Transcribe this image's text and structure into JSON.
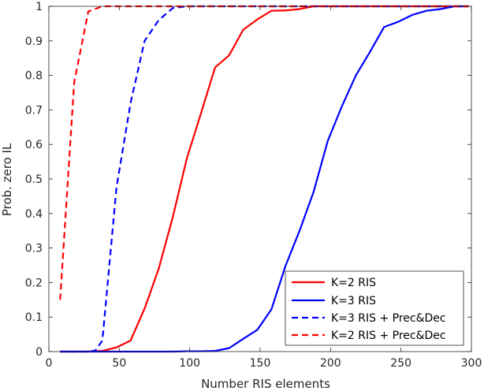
{
  "chart_data": {
    "type": "line",
    "xlabel": "Number RIS elements",
    "ylabel": "Prob. zero IL",
    "xlim": [
      0,
      300
    ],
    "ylim": [
      0,
      1
    ],
    "xticks": [
      0,
      50,
      100,
      150,
      200,
      250,
      300
    ],
    "yticks": [
      0,
      0.1,
      0.2,
      0.3,
      0.4,
      0.5,
      0.6,
      0.7,
      0.8,
      0.9,
      1
    ],
    "xtick_labels": [
      "0",
      "50",
      "100",
      "150",
      "200",
      "250",
      "300"
    ],
    "ytick_labels": [
      "0",
      "0.1",
      "0.2",
      "0.3",
      "0.4",
      "0.5",
      "0.6",
      "0.7",
      "0.8",
      "0.9",
      "1"
    ],
    "grid": false,
    "legend_position": "bottom-right",
    "series": [
      {
        "name": "K=2 RIS",
        "color": "#ff0000",
        "dash": "solid",
        "points": [
          [
            8,
            0
          ],
          [
            18,
            0
          ],
          [
            28,
            0
          ],
          [
            38,
            0.002
          ],
          [
            48,
            0.012
          ],
          [
            58,
            0.032
          ],
          [
            68,
            0.125
          ],
          [
            78,
            0.24
          ],
          [
            88,
            0.39
          ],
          [
            98,
            0.56
          ],
          [
            108,
            0.69
          ],
          [
            118,
            0.823
          ],
          [
            128,
            0.858
          ],
          [
            138,
            0.932
          ],
          [
            148,
            0.962
          ],
          [
            158,
            0.987
          ],
          [
            168,
            0.988
          ],
          [
            178,
            0.992
          ],
          [
            188,
            1
          ],
          [
            198,
            1
          ],
          [
            208,
            1
          ],
          [
            218,
            1
          ],
          [
            228,
            1
          ],
          [
            238,
            1
          ],
          [
            248,
            1
          ],
          [
            258,
            1
          ],
          [
            268,
            1
          ],
          [
            278,
            1
          ],
          [
            288,
            1
          ],
          [
            298,
            1
          ]
        ]
      },
      {
        "name": "K=3 RIS",
        "color": "#0000ff",
        "dash": "solid",
        "points": [
          [
            8,
            0
          ],
          [
            18,
            0
          ],
          [
            28,
            0
          ],
          [
            38,
            0
          ],
          [
            48,
            0
          ],
          [
            58,
            0
          ],
          [
            68,
            0
          ],
          [
            78,
            0
          ],
          [
            88,
            0
          ],
          [
            98,
            0.001
          ],
          [
            108,
            0.001
          ],
          [
            118,
            0.002
          ],
          [
            128,
            0.01
          ],
          [
            138,
            0.037
          ],
          [
            148,
            0.063
          ],
          [
            158,
            0.122
          ],
          [
            168,
            0.248
          ],
          [
            178,
            0.35
          ],
          [
            188,
            0.463
          ],
          [
            198,
            0.61
          ],
          [
            208,
            0.71
          ],
          [
            218,
            0.8
          ],
          [
            228,
            0.868
          ],
          [
            238,
            0.94
          ],
          [
            248,
            0.955
          ],
          [
            258,
            0.975
          ],
          [
            268,
            0.987
          ],
          [
            278,
            0.992
          ],
          [
            288,
            1
          ],
          [
            298,
            1
          ]
        ]
      },
      {
        "name": "K=3 RIS + Prec&Dec",
        "color": "#0000ff",
        "dash": "dashed",
        "points": [
          [
            8,
            0
          ],
          [
            18,
            0
          ],
          [
            28,
            0
          ],
          [
            33,
            0.003
          ],
          [
            38,
            0.032
          ],
          [
            48,
            0.475
          ],
          [
            58,
            0.72
          ],
          [
            68,
            0.9
          ],
          [
            78,
            0.96
          ],
          [
            88,
            0.995
          ],
          [
            98,
            1
          ],
          [
            108,
            1
          ],
          [
            118,
            1
          ],
          [
            128,
            1
          ],
          [
            138,
            1
          ],
          [
            148,
            1
          ],
          [
            158,
            1
          ],
          [
            168,
            1
          ],
          [
            178,
            1
          ],
          [
            188,
            1
          ],
          [
            198,
            1
          ],
          [
            208,
            1
          ],
          [
            218,
            1
          ],
          [
            228,
            1
          ],
          [
            238,
            1
          ],
          [
            248,
            1
          ],
          [
            258,
            1
          ],
          [
            268,
            1
          ],
          [
            278,
            1
          ],
          [
            288,
            1
          ],
          [
            298,
            1
          ]
        ]
      },
      {
        "name": "K=2 RIS + Prec&Dec",
        "color": "#ff0000",
        "dash": "dashed",
        "points": [
          [
            8,
            0.15
          ],
          [
            18,
            0.78
          ],
          [
            28,
            0.985
          ],
          [
            38,
            1
          ],
          [
            48,
            1
          ],
          [
            58,
            1
          ],
          [
            68,
            1
          ],
          [
            78,
            1
          ],
          [
            88,
            1
          ],
          [
            98,
            1
          ],
          [
            108,
            1
          ],
          [
            118,
            1
          ],
          [
            128,
            1
          ],
          [
            138,
            1
          ],
          [
            148,
            1
          ],
          [
            158,
            1
          ],
          [
            168,
            1
          ],
          [
            178,
            1
          ],
          [
            188,
            1
          ],
          [
            198,
            1
          ],
          [
            208,
            1
          ],
          [
            218,
            1
          ],
          [
            228,
            1
          ],
          [
            238,
            1
          ],
          [
            248,
            1
          ],
          [
            258,
            1
          ],
          [
            268,
            1
          ],
          [
            278,
            1
          ],
          [
            288,
            1
          ],
          [
            298,
            1
          ]
        ]
      }
    ]
  }
}
